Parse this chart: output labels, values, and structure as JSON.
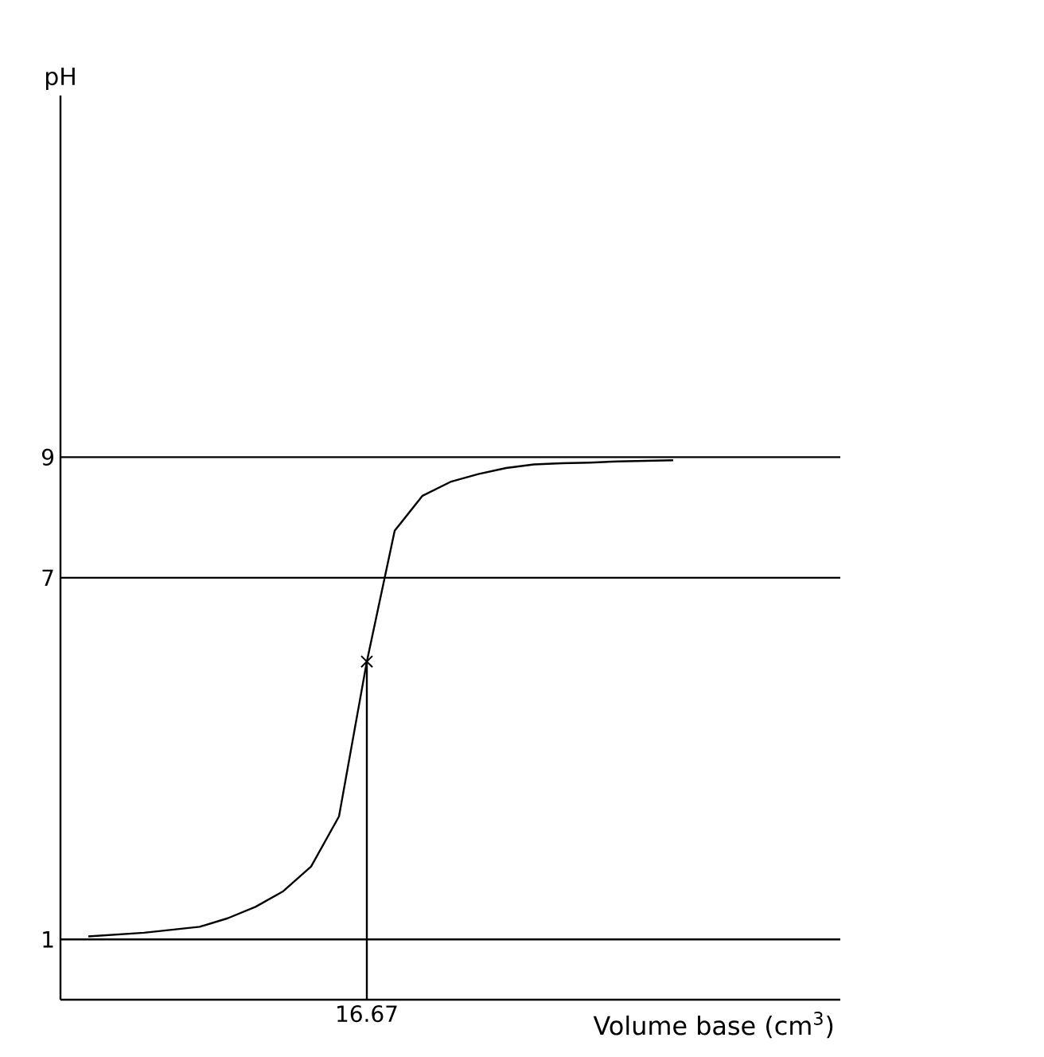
{
  "chart_data": {
    "type": "line",
    "xlabel": "Volume base (cm$^{3}$)",
    "ylabel": "pH",
    "categories": [
      null,
      null,
      null,
      null,
      null,
      null,
      null,
      null,
      null,
      null,
      "16.67",
      null,
      null,
      null,
      null,
      null,
      null,
      null,
      null,
      null,
      null,
      null
    ],
    "ylim": [
      0,
      15
    ],
    "yticks": [
      {
        "value": 1,
        "label": "1"
      },
      {
        "value": 7,
        "label": "7"
      },
      {
        "value": 9,
        "label": "9"
      }
    ],
    "grid": "y",
    "series": [
      {
        "color": "#000000",
        "values": [
          1.05,
          1.08,
          1.11,
          1.16,
          1.21,
          1.35,
          1.54,
          1.8,
          2.21,
          3.04,
          5.61,
          7.78,
          8.36,
          8.59,
          8.72,
          8.82,
          8.88,
          8.9,
          8.91,
          8.93,
          8.94,
          8.95
        ]
      },
      {
        "type": "line",
        "color": "#000000",
        "x": [
          "16.67",
          "16.67"
        ],
        "values": [
          0,
          5.61
        ]
      },
      {
        "type": "scatter",
        "marker": "cross",
        "color": "#000000",
        "x": [
          "16.67"
        ],
        "values": [
          5.61
        ]
      }
    ]
  }
}
